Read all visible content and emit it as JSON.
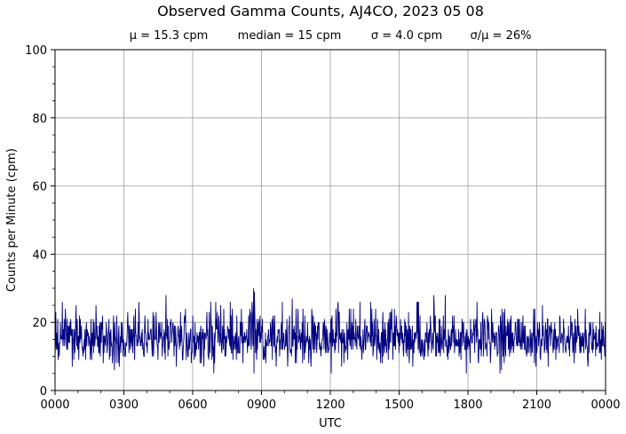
{
  "chart_data": {
    "type": "line",
    "title": "Observed Gamma Counts, AJ4CO, 2023 05 08",
    "stats": {
      "mean": "μ = 15.3 cpm",
      "median": "median = 15 cpm",
      "sigma": "σ = 4.0 cpm",
      "ratio": "σ/μ = 26%"
    },
    "xlabel": "UTC",
    "ylabel": "Counts per Minute (cpm)",
    "x_ticks": [
      "0000",
      "0300",
      "0600",
      "0900",
      "1200",
      "1500",
      "1800",
      "2100",
      "0000"
    ],
    "y_ticks": [
      0,
      20,
      40,
      60,
      80,
      100
    ],
    "ylim": [
      0,
      100
    ],
    "grid": true,
    "line_color": "#000080",
    "series": [
      {
        "sampling": "1 sample per minute, 0000 to 2400 UTC",
        "mean": 15.3,
        "std": 4.0,
        "values_summary": "counts fluctuate mostly between 7 and 25 cpm; peaks near 28 at ~0450 UTC and ~30 at ~0840 UTC"
      }
    ]
  }
}
